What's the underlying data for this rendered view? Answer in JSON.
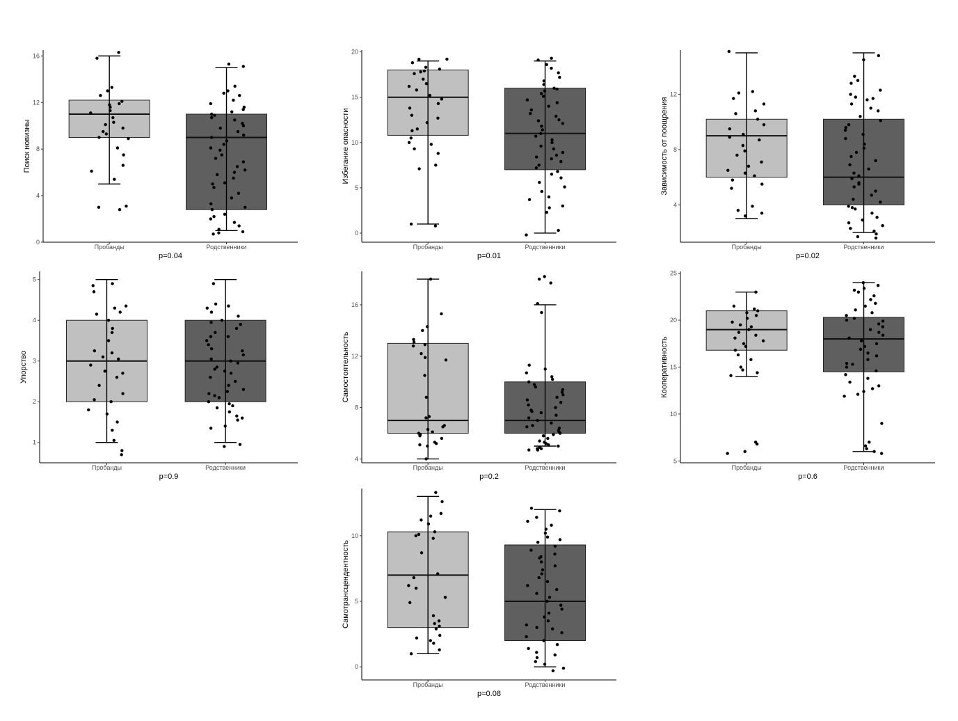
{
  "colors": {
    "proband_box": "#c0c0c0",
    "relative_box": "#5f5f5f",
    "points": "#000000",
    "axis": "#000000"
  },
  "chart_data": [
    {
      "type": "boxplot",
      "ylabel": "Поиск новизны",
      "xlabel": "p=0.04",
      "categories": [
        "Пробанды",
        "Родственники"
      ],
      "ylim": [
        0,
        16.5
      ],
      "yticks": [
        0,
        4,
        8,
        12,
        16
      ],
      "boxes": [
        {
          "min": 5,
          "q1": 9,
          "median": 11,
          "q3": 12.2,
          "max": 16
        },
        {
          "min": 1,
          "q1": 2.8,
          "median": 9,
          "q3": 11,
          "max": 15
        }
      ],
      "points": [
        [
          15.8,
          16.3,
          13.3,
          13,
          12.6,
          12.1,
          11.9,
          11.8,
          11.6,
          11.3,
          11.1,
          10.7,
          10.3,
          10.1,
          9.8,
          9.5,
          9.3,
          9,
          8.9,
          8.1,
          7.5,
          6.6,
          6.1,
          5.4,
          3.1,
          3.0,
          2.8
        ],
        [
          15.3,
          15.1,
          13.4,
          13,
          12.8,
          12.6,
          12.2,
          11.9,
          11.6,
          11.4,
          11.2,
          11,
          10.9,
          10.7,
          10.5,
          10.2,
          10,
          9.8,
          9.5,
          9.2,
          9,
          8.7,
          8.4,
          8.1,
          7.9,
          7.5,
          7.2,
          6.9,
          6.5,
          6.2,
          5.8,
          5.5,
          5.1,
          4.7,
          4.2,
          3.8,
          3.3,
          2.8,
          2.4,
          2,
          1.7,
          1.4,
          1.1,
          0.9,
          0.8,
          0.7,
          3.0,
          2.2,
          5.0,
          6.0
        ]
      ]
    },
    {
      "type": "boxplot",
      "ylabel": "Избегание опасности",
      "xlabel": "p=0.01",
      "categories": [
        "Пробанды",
        "Родственники"
      ],
      "ylim": [
        -1,
        20.2
      ],
      "yticks": [
        0,
        5,
        10,
        15,
        20
      ],
      "boxes": [
        {
          "min": 1,
          "q1": 10.8,
          "median": 15,
          "q3": 18,
          "max": 19
        },
        {
          "min": 0,
          "q1": 7,
          "median": 11,
          "q3": 16,
          "max": 19
        }
      ],
      "points": [
        [
          19.2,
          19.2,
          18.8,
          18.3,
          18.1,
          17.9,
          17.8,
          17.6,
          17,
          16.5,
          16.2,
          15.8,
          15.2,
          14.8,
          14.3,
          13.8,
          13,
          12.7,
          12.2,
          11.5,
          11.3,
          10.5,
          10,
          9.8,
          9.3,
          8.8,
          7.5,
          7.1,
          1.0,
          0.8
        ],
        [
          19.3,
          19.1,
          18.6,
          18.2,
          17.7,
          17.2,
          16.8,
          16.4,
          16,
          15.7,
          15.4,
          15.1,
          14.7,
          14.4,
          14,
          13.6,
          13.2,
          12.9,
          12.5,
          12.1,
          11.8,
          11.4,
          11,
          10.7,
          10.3,
          10,
          9.6,
          9.3,
          8.9,
          8.6,
          8.2,
          7.9,
          7.5,
          7.2,
          6.8,
          6.5,
          6.1,
          5.6,
          5.1,
          4.6,
          4.0,
          3.7,
          3.0,
          2.8,
          2.3,
          0.3,
          -0.2,
          15.9,
          12.4,
          8.4
        ]
      ]
    },
    {
      "type": "boxplot",
      "ylabel": "Зависимость от поощрения",
      "xlabel": "p=0.02",
      "categories": [
        "Пробанды",
        "Родственники"
      ],
      "ylim": [
        1.3,
        15.2
      ],
      "yticks": [
        4,
        8,
        12
      ],
      "boxes": [
        {
          "min": 3,
          "q1": 6,
          "median": 9,
          "q3": 10.2,
          "max": 15
        },
        {
          "min": 2,
          "q1": 4,
          "median": 6,
          "q3": 10.2,
          "max": 15
        }
      ],
      "points": [
        [
          15.1,
          12.2,
          12.1,
          11.7,
          11.3,
          10.8,
          10.6,
          10.2,
          9.8,
          9.5,
          9.1,
          8.9,
          8.7,
          8.3,
          7.9,
          7.6,
          7.1,
          6.8,
          6.5,
          6.3,
          6.1,
          5.8,
          5.5,
          5.2,
          3.9,
          3.6,
          3.4,
          3.2
        ],
        [
          14.8,
          14.5,
          13.3,
          13,
          12.8,
          12.3,
          12,
          11.8,
          11.6,
          11.3,
          11,
          10.8,
          10.4,
          10.1,
          9.8,
          9.4,
          9.1,
          8.8,
          8.4,
          8.1,
          7.8,
          7.5,
          7.2,
          6.9,
          6.6,
          6.3,
          6.1,
          5.9,
          5.6,
          5.3,
          5,
          4.7,
          4.4,
          4.2,
          3.9,
          3.7,
          3.4,
          3.1,
          2.9,
          2.7,
          2.5,
          2.3,
          2.1,
          1.9,
          1.7,
          1.6,
          11.7,
          9.6,
          5.5,
          3.8
        ]
      ]
    },
    {
      "type": "boxplot",
      "ylabel": "Упорство",
      "xlabel": "p=0.9",
      "categories": [
        "Пробанды",
        "Родственники"
      ],
      "ylim": [
        0.5,
        5.2
      ],
      "yticks": [
        1,
        2,
        3,
        4,
        5
      ],
      "boxes": [
        {
          "min": 1,
          "q1": 2,
          "median": 3,
          "q3": 4,
          "max": 5
        },
        {
          "min": 1,
          "q1": 2,
          "median": 3,
          "q3": 4,
          "max": 5
        }
      ],
      "points": [
        [
          4.9,
          4.85,
          4.7,
          4.35,
          4.3,
          4.2,
          4.15,
          4.0,
          3.8,
          3.7,
          3.5,
          3.25,
          3.2,
          3.1,
          3.05,
          2.9,
          2.75,
          2.7,
          2.6,
          2.4,
          2.2,
          2.05,
          2.0,
          1.8,
          1.7,
          1.5,
          1.3,
          1.05,
          0.8,
          0.7
        ],
        [
          4.9,
          4.4,
          4.35,
          4.3,
          4.2,
          4.1,
          4.0,
          3.95,
          3.9,
          3.8,
          3.7,
          3.6,
          3.5,
          3.4,
          3.3,
          3.25,
          3.15,
          3.05,
          3.0,
          2.95,
          2.85,
          2.75,
          2.7,
          2.6,
          2.5,
          2.4,
          2.3,
          2.25,
          2.15,
          2.1,
          2.0,
          1.95,
          1.9,
          1.85,
          1.75,
          1.65,
          1.6,
          1.55,
          1.4,
          1.35,
          0.95,
          0.9,
          3.6,
          2.8,
          2.2
        ]
      ]
    },
    {
      "type": "boxplot",
      "ylabel": "Самостоятельность",
      "xlabel": "p=0.2",
      "categories": [
        "Пробанды",
        "Родственники"
      ],
      "ylim": [
        3.7,
        18.6
      ],
      "yticks": [
        4,
        8,
        12,
        16
      ],
      "boxes": [
        {
          "min": 4,
          "q1": 6,
          "median": 7,
          "q3": 13,
          "max": 18
        },
        {
          "min": 5,
          "q1": 6,
          "median": 7,
          "q3": 10,
          "max": 16
        }
      ],
      "points": [
        [
          18,
          15.3,
          14.3,
          14,
          13.3,
          13.1,
          12.9,
          12.8,
          12.2,
          11.9,
          11.7,
          10.5,
          8.8,
          7.3,
          7.2,
          6.6,
          6.5,
          6.3,
          6.1,
          6.0,
          5.9,
          5.8,
          5.6,
          5.3,
          5.2,
          5.1,
          5.0,
          4.0
        ],
        [
          18.2,
          18.0,
          17.7,
          16.1,
          15.4,
          11.3,
          11.0,
          10.7,
          10.4,
          10.2,
          10.0,
          9.8,
          9.6,
          9.4,
          9.2,
          9.0,
          8.8,
          8.6,
          8.4,
          8.2,
          8.0,
          7.8,
          7.6,
          7.4,
          7.2,
          7.0,
          6.8,
          6.6,
          6.4,
          6.2,
          6.1,
          6.0,
          5.9,
          5.8,
          5.6,
          5.4,
          5.3,
          5.2,
          5.1,
          5.0,
          4.9,
          4.8,
          4.8,
          4.7,
          4.7,
          6.5,
          7.7
        ]
      ]
    },
    {
      "type": "boxplot",
      "ylabel": "Кооперативность",
      "xlabel": "p=0.6",
      "categories": [
        "Пробанды",
        "Родственники"
      ],
      "ylim": [
        4.8,
        25.2
      ],
      "yticks": [
        5,
        10,
        15,
        20,
        25
      ],
      "boxes": [
        {
          "min": 14,
          "q1": 16.8,
          "median": 19,
          "q3": 21,
          "max": 23
        },
        {
          "min": 6,
          "q1": 14.5,
          "median": 18,
          "q3": 20.3,
          "max": 24
        }
      ],
      "points": [
        [
          23,
          21.5,
          21.2,
          21,
          20.8,
          20.5,
          20.2,
          19.8,
          19.5,
          19.3,
          19,
          18.7,
          18.4,
          18.1,
          17.8,
          17.5,
          17.2,
          16.8,
          16.3,
          15.8,
          15.0,
          14.7,
          14.4,
          14.1,
          7.0,
          6.8,
          6.0,
          5.8
        ],
        [
          24,
          23.7,
          23.4,
          23,
          22.6,
          22.2,
          21.8,
          21.5,
          21.1,
          20.8,
          20.5,
          20.2,
          19.9,
          19.6,
          19.3,
          19,
          18.7,
          18.4,
          18.1,
          17.8,
          17.5,
          17.2,
          16.9,
          16.5,
          16.2,
          15.8,
          15.4,
          15.0,
          14.6,
          14.2,
          13.8,
          13.4,
          13.0,
          12.7,
          12.4,
          12.1,
          11.9,
          9.0,
          7.0,
          6.6,
          6.3,
          6.0,
          5.8,
          23.2,
          20.0,
          15.3
        ]
      ]
    },
    {
      "type": "boxplot",
      "ylabel": "Самотрансцендентность",
      "xlabel": "p=0.08",
      "categories": [
        "Пробанды",
        "Родственники"
      ],
      "ylim": [
        -1,
        13.6
      ],
      "yticks": [
        0,
        5,
        10
      ],
      "boxes": [
        {
          "min": 1,
          "q1": 3,
          "median": 7,
          "q3": 10.3,
          "max": 13
        },
        {
          "min": 0,
          "q1": 2,
          "median": 5,
          "q3": 9.3,
          "max": 12
        }
      ],
      "points": [
        [
          13.3,
          12.6,
          11.7,
          11.5,
          11.2,
          10.9,
          10.3,
          10.1,
          10.0,
          9.8,
          8.7,
          7.1,
          6.8,
          6.2,
          6.0,
          5.3,
          4.9,
          3.9,
          3.5,
          3.3,
          3.1,
          2.9,
          2.4,
          2.2,
          2.0,
          1.8,
          1.3,
          1.0
        ],
        [
          12.1,
          11.9,
          11.4,
          11.1,
          10.8,
          10.5,
          10.2,
          9.9,
          9.7,
          9.5,
          9.2,
          8.9,
          8.6,
          8.3,
          8.0,
          7.7,
          7.4,
          7.1,
          6.8,
          6.5,
          6.2,
          5.9,
          5.6,
          5.3,
          5.0,
          4.7,
          4.4,
          4.1,
          3.8,
          3.5,
          3.2,
          2.9,
          2.6,
          2.3,
          2.0,
          1.7,
          1.4,
          1.1,
          0.9,
          0.7,
          0.4,
          0.2,
          -0.1,
          -0.3,
          8.4,
          3.0
        ]
      ]
    }
  ]
}
